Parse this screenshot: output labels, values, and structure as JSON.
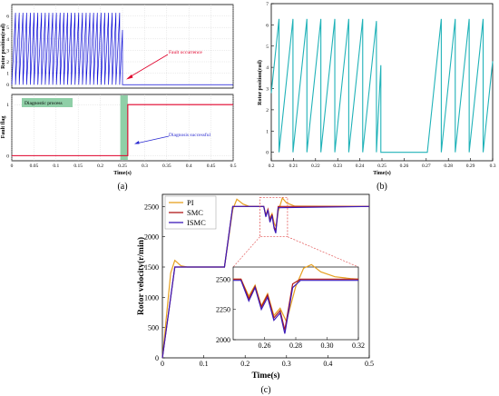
{
  "chart_data": [
    {
      "panel_label": "(a)",
      "type": "line",
      "subplots": [
        {
          "id": "a-top",
          "ylabel": "Rotor position(rad)",
          "xlim": [
            0,
            0.5
          ],
          "ylim": [
            -0.3,
            7
          ],
          "yticks": [
            0,
            1,
            2,
            3,
            4,
            5,
            6
          ],
          "grid": true,
          "series": [
            {
              "color": "#1010d8",
              "sawtooth_from": 0.0,
              "sawtooth_to": 0.25,
              "period": 0.0084,
              "amplitude": 6.28,
              "after": {
                "x_start": 0.25,
                "x_end": 0.5,
                "value": 0
              }
            }
          ],
          "annotation": {
            "text": "Fault occurrence",
            "color": "#e0002a",
            "points_to_x": 0.26,
            "points_to_y": 0
          }
        },
        {
          "id": "a-bottom",
          "ylabel": "Fault flag",
          "xlabel": "Time(s)",
          "xlim": [
            0,
            0.5
          ],
          "ylim": [
            -0.1,
            1.2
          ],
          "xticks": [
            0,
            0.05,
            0.1,
            0.15,
            0.2,
            0.25,
            0.3,
            0.35,
            0.4,
            0.45,
            0.5
          ],
          "yticks": [
            0,
            1
          ],
          "grid": true,
          "series": [
            {
              "color": "#e0002a",
              "x": [
                0,
                0.262,
                0.262,
                0.5
              ],
              "y": [
                0,
                0,
                1,
                1
              ]
            }
          ],
          "shaded_region": {
            "x_start": 0.245,
            "x_end": 0.262,
            "color": "#8fcfa7"
          },
          "labels": [
            {
              "text": "Diagnostic process",
              "bg": "#8fcfa7"
            },
            {
              "text": "Diagnosis successful",
              "color": "#2a2ad0",
              "points_to_x": 0.263,
              "points_to_y": 0.3
            }
          ]
        }
      ]
    },
    {
      "panel_label": "(b)",
      "type": "line",
      "ylabel": "Rotor position(rad)",
      "xlabel": "Time(s)",
      "xlim": [
        0.2,
        0.3
      ],
      "ylim": [
        -0.4,
        7
      ],
      "xticks": [
        0.2,
        0.21,
        0.22,
        0.23,
        0.24,
        0.25,
        0.26,
        0.27,
        0.28,
        0.29,
        0.3
      ],
      "yticks": [
        0,
        1,
        2,
        3,
        4,
        5,
        6,
        7
      ],
      "grid": false,
      "series": [
        {
          "color": "#20b2b8",
          "segments": [
            {
              "type": "sawtooth",
              "x_start": 0.2,
              "x_end": 0.2475,
              "period": 0.0063,
              "phase_x": 0.2035,
              "amplitude": 6.28
            },
            {
              "type": "line",
              "x": [
                0.2475,
                0.2495,
                0.2495,
                0.2705
              ],
              "y": [
                0.0,
                4.1,
                0.0,
                0.0
              ]
            },
            {
              "type": "sawtooth",
              "x_start": 0.2705,
              "x_end": 0.3,
              "period": 0.0063,
              "phase_x": 0.2705,
              "amplitude": 6.28
            }
          ]
        }
      ]
    },
    {
      "panel_label": "(c)",
      "type": "line",
      "ylabel": "Rotor velocity(r/min)",
      "xlabel": "Time(s)",
      "xlim": [
        0,
        0.5
      ],
      "ylim": [
        0,
        2700
      ],
      "xticks": [
        0,
        0.1,
        0.2,
        0.3,
        0.4,
        0.5
      ],
      "yticks": [
        0,
        500,
        1000,
        1500,
        2000,
        2500
      ],
      "xtick_labels": [
        "0",
        "0.1",
        "0.2",
        "0.3",
        "0.4",
        "0.5"
      ],
      "grid": false,
      "legend": {
        "position": "top-left",
        "entries": [
          "PI",
          "SMC",
          "ISMC"
        ]
      },
      "series": [
        {
          "name": "PI",
          "color": "#e6a020",
          "x": [
            0,
            0.02,
            0.03,
            0.045,
            0.06,
            0.08,
            0.15,
            0.17,
            0.18,
            0.195,
            0.21,
            0.23,
            0.245,
            0.25,
            0.255,
            0.26,
            0.265,
            0.27,
            0.275,
            0.28,
            0.29,
            0.3,
            0.32,
            0.5
          ],
          "y": [
            0,
            1400,
            1610,
            1520,
            1500,
            1500,
            1500,
            2450,
            2620,
            2540,
            2500,
            2500,
            2500,
            2360,
            2440,
            2300,
            2380,
            2230,
            2160,
            2420,
            2640,
            2560,
            2505,
            2500
          ]
        },
        {
          "name": "SMC",
          "color": "#b01818",
          "x": [
            0,
            0.03,
            0.15,
            0.17,
            0.245,
            0.25,
            0.255,
            0.26,
            0.265,
            0.27,
            0.274,
            0.28,
            0.5
          ],
          "y": [
            0,
            1500,
            1500,
            2500,
            2500,
            2350,
            2450,
            2260,
            2370,
            2160,
            2100,
            2500,
            2500
          ]
        },
        {
          "name": "ISMC",
          "color": "#3c1ab8",
          "x": [
            0,
            0.03,
            0.15,
            0.17,
            0.245,
            0.25,
            0.255,
            0.26,
            0.265,
            0.27,
            0.274,
            0.28,
            0.5
          ],
          "y": [
            0,
            1500,
            1500,
            2500,
            2500,
            2330,
            2440,
            2240,
            2350,
            2140,
            2060,
            2480,
            2500
          ]
        }
      ],
      "inset": {
        "xlim": [
          0.24,
          0.32
        ],
        "ylim": [
          2000,
          2600
        ],
        "xticks": [
          0.26,
          0.28,
          0.3,
          0.32
        ],
        "xtick_labels": [
          "0.26",
          "0.28",
          "0.30",
          "0.32"
        ],
        "yticks": [
          2000,
          2250,
          2500
        ],
        "zoom_box": {
          "x": [
            0.24,
            0.32
          ],
          "y": [
            2000,
            2650
          ]
        },
        "series": [
          {
            "name": "PI",
            "color": "#e6a020",
            "x": [
              0.24,
              0.245,
              0.25,
              0.254,
              0.258,
              0.262,
              0.266,
              0.27,
              0.274,
              0.28,
              0.285,
              0.29,
              0.296,
              0.305,
              0.315,
              0.32
            ],
            "y": [
              2500,
              2500,
              2360,
              2450,
              2280,
              2380,
              2200,
              2260,
              2150,
              2440,
              2590,
              2620,
              2560,
              2520,
              2505,
              2500
            ]
          },
          {
            "name": "SMC",
            "color": "#b01818",
            "x": [
              0.24,
              0.245,
              0.25,
              0.254,
              0.258,
              0.262,
              0.266,
              0.27,
              0.273,
              0.278,
              0.283,
              0.29,
              0.32
            ],
            "y": [
              2500,
              2500,
              2340,
              2440,
              2270,
              2370,
              2180,
              2240,
              2080,
              2460,
              2500,
              2500,
              2500
            ]
          },
          {
            "name": "ISMC",
            "color": "#3c1ab8",
            "x": [
              0.24,
              0.245,
              0.25,
              0.254,
              0.258,
              0.262,
              0.266,
              0.27,
              0.273,
              0.278,
              0.283,
              0.29,
              0.32
            ],
            "y": [
              2490,
              2490,
              2320,
              2430,
              2250,
              2350,
              2160,
              2220,
              2050,
              2430,
              2490,
              2490,
              2490
            ]
          }
        ]
      }
    }
  ]
}
